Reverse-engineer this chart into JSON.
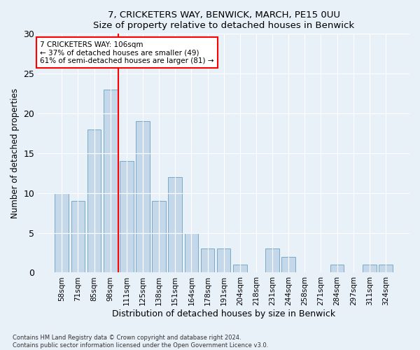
{
  "title1": "7, CRICKETERS WAY, BENWICK, MARCH, PE15 0UU",
  "title2": "Size of property relative to detached houses in Benwick",
  "xlabel": "Distribution of detached houses by size in Benwick",
  "ylabel": "Number of detached properties",
  "categories": [
    "58sqm",
    "71sqm",
    "85sqm",
    "98sqm",
    "111sqm",
    "125sqm",
    "138sqm",
    "151sqm",
    "164sqm",
    "178sqm",
    "191sqm",
    "204sqm",
    "218sqm",
    "231sqm",
    "244sqm",
    "258sqm",
    "271sqm",
    "284sqm",
    "297sqm",
    "311sqm",
    "324sqm"
  ],
  "values": [
    10,
    9,
    18,
    23,
    14,
    19,
    9,
    12,
    5,
    3,
    3,
    1,
    0,
    3,
    2,
    0,
    0,
    1,
    0,
    1,
    1
  ],
  "bar_color": "#c5d8ea",
  "bar_edge_color": "#7aaac8",
  "vline_x": 3.5,
  "vline_color": "red",
  "annotation_text": "7 CRICKETERS WAY: 106sqm\n← 37% of detached houses are smaller (49)\n61% of semi-detached houses are larger (81) →",
  "annotation_box_color": "white",
  "annotation_box_edge_color": "red",
  "ylim": [
    0,
    30
  ],
  "yticks": [
    0,
    5,
    10,
    15,
    20,
    25,
    30
  ],
  "footer1": "Contains HM Land Registry data © Crown copyright and database right 2024.",
  "footer2": "Contains public sector information licensed under the Open Government Licence v3.0.",
  "bg_color": "#e8f0f8",
  "plot_bg_color": "#e8f0f8"
}
